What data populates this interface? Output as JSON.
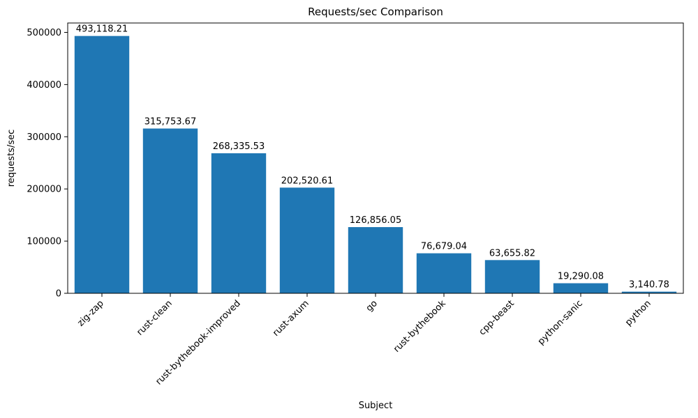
{
  "chart_data": {
    "type": "bar",
    "title": "Requests/sec Comparison",
    "xlabel": "Subject",
    "ylabel": "requests/sec",
    "categories": [
      "zig-zap",
      "rust-clean",
      "rust-bythebook-improved",
      "rust-axum",
      "go",
      "rust-bythebook",
      "cpp-beast",
      "python-sanic",
      "python"
    ],
    "values": [
      493118.21,
      315753.67,
      268335.53,
      202520.61,
      126856.05,
      76679.04,
      63655.82,
      19290.08,
      3140.78
    ],
    "value_labels": [
      "493,118.21",
      "315,753.67",
      "268,335.53",
      "202,520.61",
      "126,856.05",
      "76,679.04",
      "63,655.82",
      "19,290.08",
      "3,140.78"
    ],
    "bar_color": "#1f77b4",
    "ylim": [
      0,
      518000
    ],
    "yticks": [
      0,
      100000,
      200000,
      300000,
      400000,
      500000
    ],
    "ytick_labels": [
      "0",
      "100000",
      "200000",
      "300000",
      "400000",
      "500000"
    ],
    "grid": false,
    "legend_position": "none",
    "x_tick_rotation_deg": 45
  }
}
